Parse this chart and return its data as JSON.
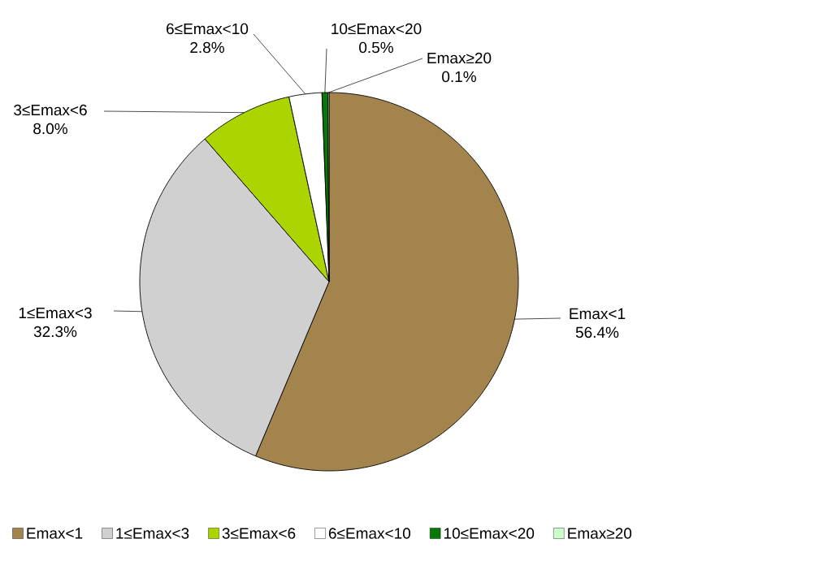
{
  "chart_data": {
    "type": "pie",
    "categories": [
      "Emax<1",
      "1≤Emax<3",
      "3≤Emax<6",
      "6≤Emax<10",
      "10≤Emax<20",
      "Emax≥20"
    ],
    "values": [
      56.4,
      32.3,
      8.0,
      2.8,
      0.5,
      0.1
    ],
    "value_labels": [
      "56.4%",
      "32.3%",
      "8.0%",
      "2.8%",
      "0.5%",
      "0.1%"
    ],
    "colors": [
      "#a3844c",
      "#d0d0d0",
      "#acd400",
      "#ffffff",
      "#087808",
      "#ccffcc"
    ],
    "legend": "bottom"
  }
}
